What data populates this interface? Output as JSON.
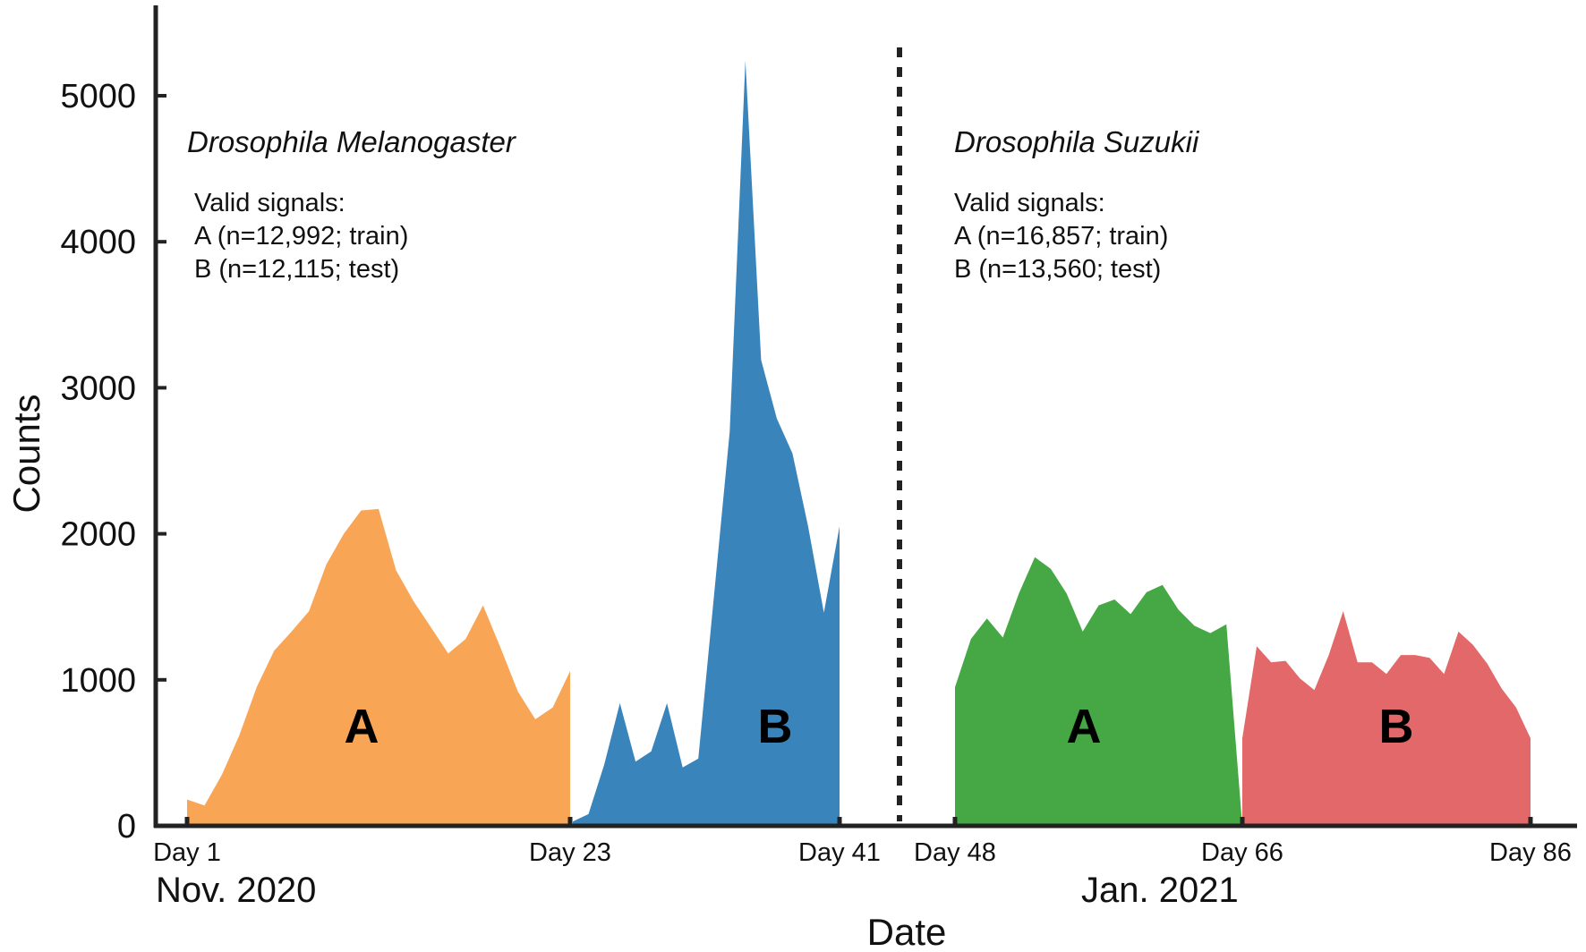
{
  "chart_data": {
    "type": "area",
    "xlabel": "Date",
    "ylabel": "Counts",
    "ylim": [
      0,
      5500
    ],
    "y_ticks": [
      "0",
      "1000",
      "2000",
      "3000",
      "4000",
      "5000"
    ],
    "x_ticks": [
      {
        "day": 1,
        "label": "Day 1"
      },
      {
        "day": 23,
        "label": "Day 23"
      },
      {
        "day": 41,
        "label": "Day 41"
      },
      {
        "day": 48,
        "label": "Day 48"
      },
      {
        "day": 66,
        "label": "Day 66"
      },
      {
        "day": 86,
        "label": "Day 86"
      }
    ],
    "months": [
      "Nov. 2020",
      "Jan. 2021"
    ],
    "groups": [
      {
        "species": "Drosophila Melanogaster",
        "signals_title": "Valid signals:",
        "signals": [
          "A (n=12,992; train)",
          "B (n=12,115; test)"
        ]
      },
      {
        "species": "Drosophila Suzukii",
        "signals_title": "Valid signals:",
        "signals": [
          "A (n=16,857; train)",
          "B (n=13,560; test)"
        ]
      }
    ],
    "series": [
      {
        "label": "A",
        "color": "#F9A556",
        "x": [
          1,
          2,
          3,
          4,
          5,
          6,
          7,
          8,
          9,
          10,
          11,
          12,
          13,
          14,
          15,
          16,
          17,
          18,
          19,
          20,
          21,
          22,
          23
        ],
        "y": [
          180,
          140,
          350,
          620,
          950,
          1200,
          1330,
          1470,
          1790,
          2000,
          2160,
          2170,
          1750,
          1540,
          1360,
          1180,
          1280,
          1510,
          1220,
          920,
          730,
          810,
          1060
        ]
      },
      {
        "label": "B",
        "color": "#3A84BC",
        "x": [
          24,
          25,
          26,
          27,
          28,
          29,
          30,
          31,
          32,
          33,
          34,
          35,
          36,
          37,
          38,
          39,
          40,
          41
        ],
        "y": [
          30,
          80,
          420,
          840,
          440,
          510,
          840,
          400,
          460,
          1580,
          2700,
          5240,
          3190,
          2790,
          2550,
          2050,
          1460,
          2050
        ]
      },
      {
        "label": "A",
        "color": "#45A845",
        "x": [
          48,
          49,
          50,
          51,
          52,
          53,
          54,
          55,
          56,
          57,
          58,
          59,
          60,
          61,
          62,
          63,
          64,
          65,
          66
        ],
        "y": [
          950,
          1280,
          1420,
          1290,
          1590,
          1840,
          1760,
          1590,
          1330,
          1510,
          1550,
          1450,
          1600,
          1650,
          1480,
          1370,
          1320,
          1380,
          0
        ]
      },
      {
        "label": "B",
        "color": "#E2686A",
        "x": [
          66,
          67,
          68,
          69,
          70,
          71,
          72,
          73,
          74,
          75,
          76,
          77,
          78,
          79,
          80,
          81,
          82,
          83,
          84,
          85,
          86
        ],
        "y": [
          600,
          1230,
          1120,
          1130,
          1010,
          930,
          1170,
          1470,
          1120,
          1120,
          1040,
          1170,
          1170,
          1150,
          1040,
          1330,
          1240,
          1110,
          940,
          810,
          600
        ]
      }
    ]
  }
}
